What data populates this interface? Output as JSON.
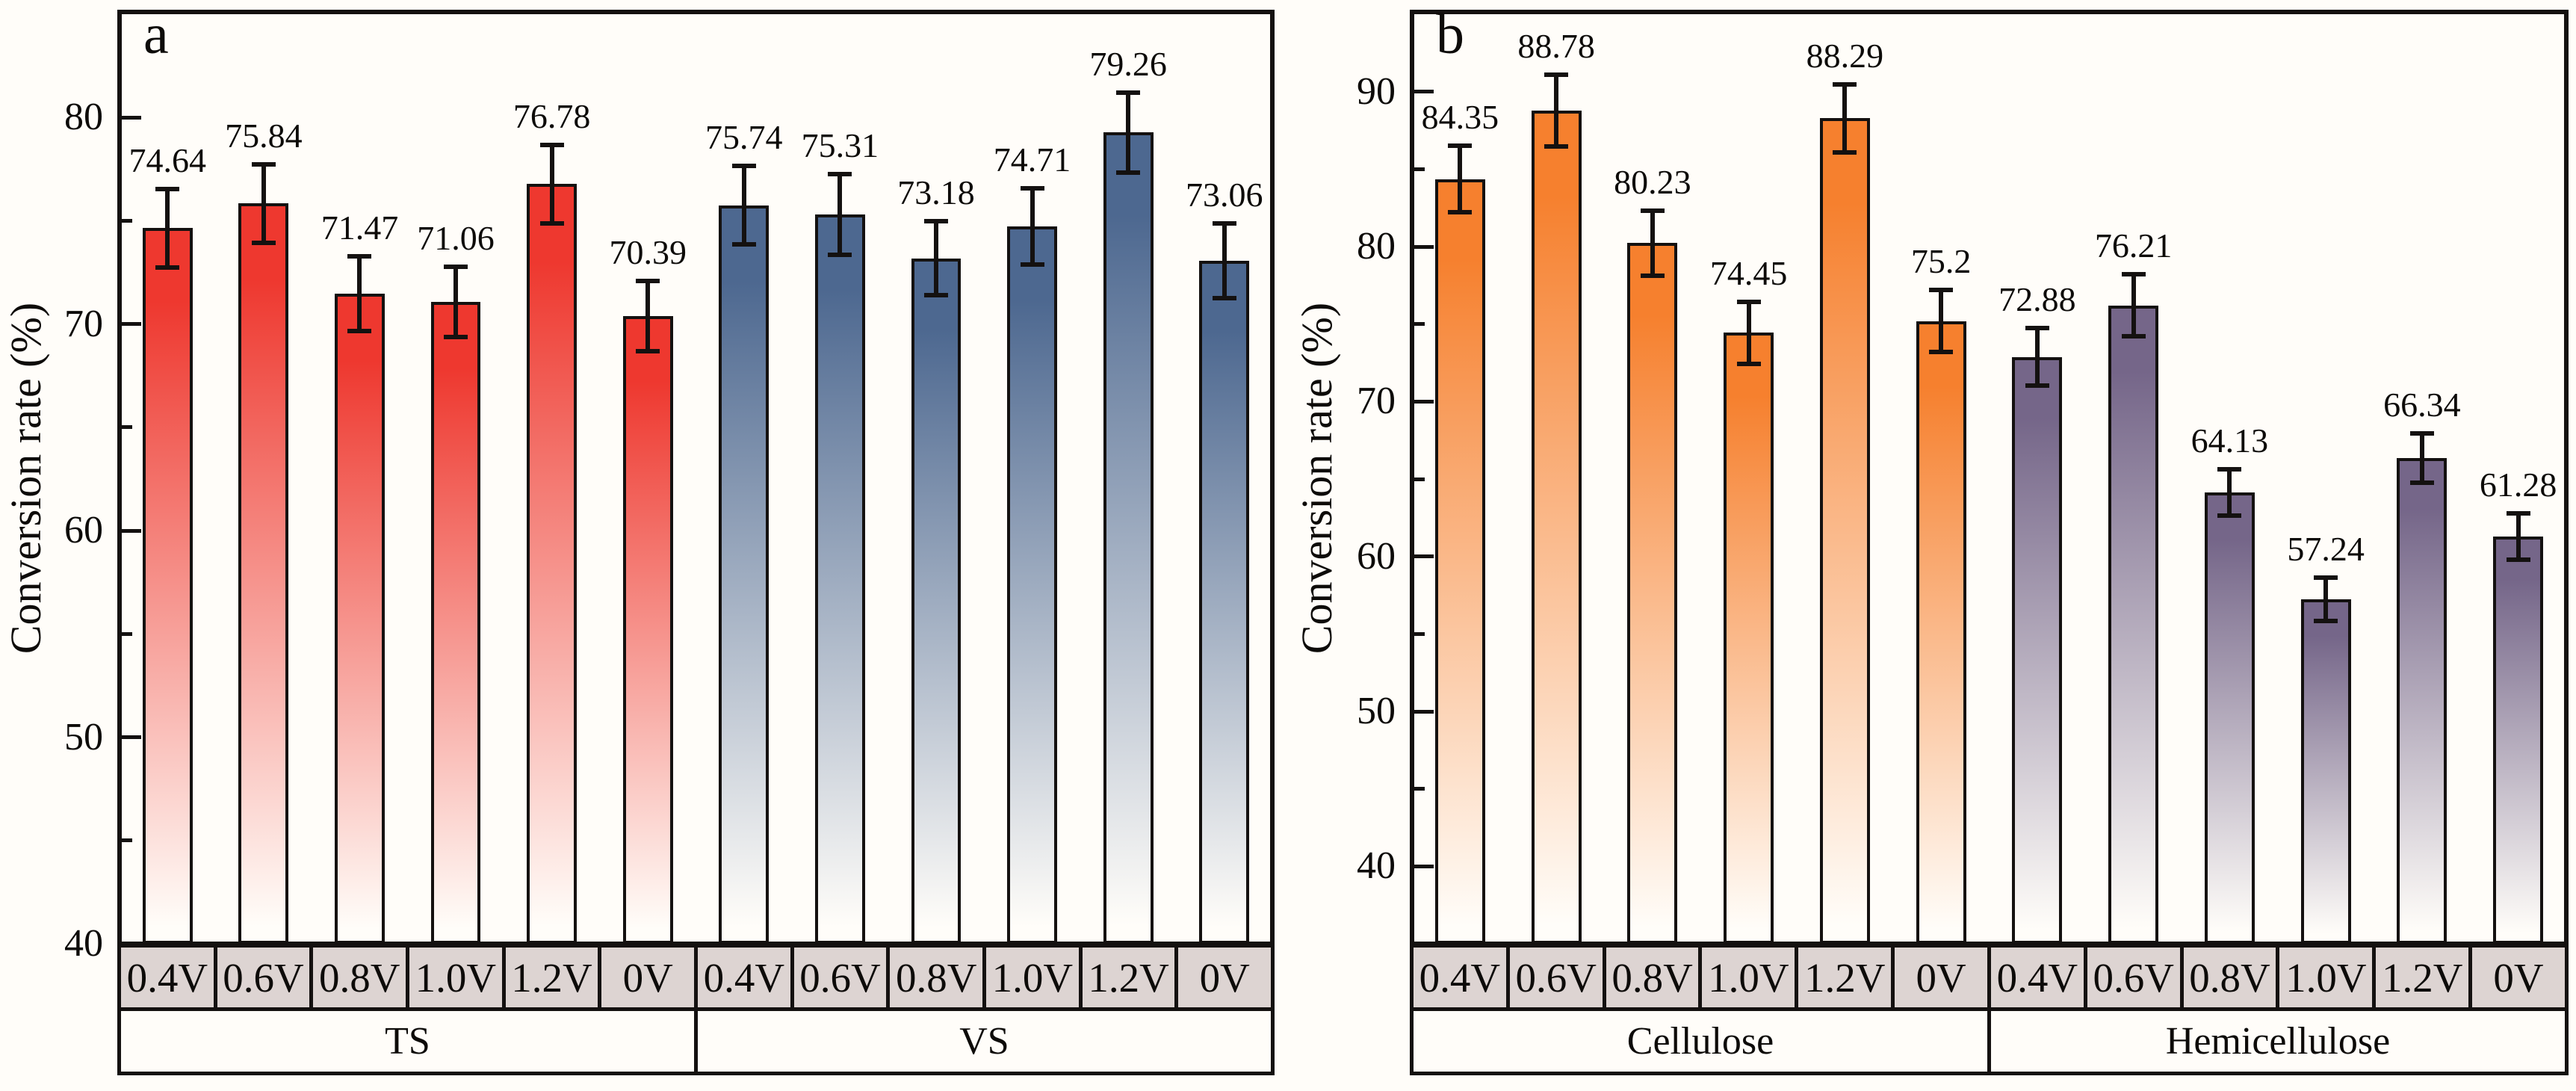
{
  "styles": {
    "background": "#fffdf9",
    "axis_color": "#141110",
    "bar_outline": "#141110",
    "error_bar_color": "#141110",
    "category_box_fill": "#ddd4d2",
    "group_box_fill": "#fffdf9",
    "bar_fade_to": "#fffdf9",
    "text_color": "#0d0b09"
  },
  "chart_data": [
    {
      "type": "bar",
      "panel_label": "a",
      "ylabel": "Conversion rate (%)",
      "ylim": [
        40,
        85.1
      ],
      "yticks_major": [
        40,
        50,
        60,
        70,
        80
      ],
      "yticks_minor": [
        45,
        55,
        65,
        75
      ],
      "grid": false,
      "legend": "none",
      "categories": [
        "0.4V",
        "0.6V",
        "0.8V",
        "1.0V",
        "1.2V",
        "0V"
      ],
      "series": [
        {
          "name": "TS",
          "bar_color": "#ee382f",
          "values": [
            74.64,
            75.84,
            71.47,
            71.06,
            76.78,
            70.39
          ],
          "errors": [
            1.9,
            1.9,
            1.8,
            1.7,
            1.9,
            1.7
          ]
        },
        {
          "name": "VS",
          "bar_color": "#4d6890",
          "values": [
            75.74,
            75.31,
            73.18,
            74.71,
            79.26,
            73.06
          ],
          "errors": [
            1.9,
            1.95,
            1.8,
            1.85,
            1.95,
            1.8
          ]
        }
      ]
    },
    {
      "type": "bar",
      "panel_label": "b",
      "ylabel": "Conversion rate (%)",
      "ylim": [
        35,
        95.15
      ],
      "yticks_major": [
        40,
        50,
        60,
        70,
        80,
        90
      ],
      "yticks_minor": [
        45,
        55,
        65,
        75,
        85
      ],
      "grid": false,
      "legend": "none",
      "categories": [
        "0.4V",
        "0.6V",
        "0.8V",
        "1.0V",
        "1.2V",
        "0V"
      ],
      "series": [
        {
          "name": "Cellulose",
          "bar_color": "#f6802e",
          "values": [
            84.35,
            88.78,
            80.23,
            74.45,
            88.29,
            75.2
          ],
          "errors": [
            2.15,
            2.3,
            2.1,
            2.0,
            2.2,
            2.0
          ]
        },
        {
          "name": "Hemicellulose",
          "bar_color": "#756689",
          "values": [
            72.88,
            76.21,
            64.13,
            57.24,
            66.34,
            61.28
          ],
          "errors": [
            1.85,
            2.0,
            1.5,
            1.4,
            1.6,
            1.5
          ]
        }
      ]
    }
  ]
}
